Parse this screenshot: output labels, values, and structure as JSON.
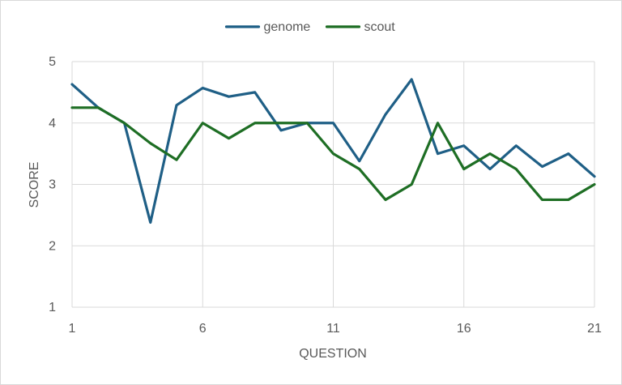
{
  "chart_data": {
    "type": "line",
    "title": "",
    "xlabel": "QUESTION",
    "ylabel": "SCORE",
    "xlim": [
      1,
      21
    ],
    "ylim": [
      1,
      5
    ],
    "x_ticks": [
      1,
      6,
      11,
      16,
      21
    ],
    "y_ticks": [
      1,
      2,
      3,
      4,
      5
    ],
    "grid": true,
    "legend_position": "top-center",
    "x": [
      1,
      2,
      3,
      4,
      5,
      6,
      7,
      8,
      9,
      10,
      11,
      12,
      13,
      14,
      15,
      16,
      17,
      18,
      19,
      20,
      21
    ],
    "series": [
      {
        "name": "genome",
        "color": "#1f5f86",
        "values": [
          4.63,
          4.25,
          4.0,
          2.38,
          4.29,
          4.57,
          4.43,
          4.5,
          3.88,
          4.0,
          4.0,
          3.38,
          4.14,
          4.71,
          3.5,
          3.63,
          3.25,
          3.63,
          3.29,
          3.5,
          3.13
        ]
      },
      {
        "name": "scout",
        "color": "#1e6e24",
        "values": [
          4.25,
          4.25,
          4.0,
          3.67,
          3.4,
          4.0,
          3.75,
          4.0,
          4.0,
          4.0,
          3.5,
          3.25,
          2.75,
          3.0,
          4.0,
          3.25,
          3.5,
          3.25,
          2.75,
          2.75,
          3.0
        ]
      }
    ]
  }
}
